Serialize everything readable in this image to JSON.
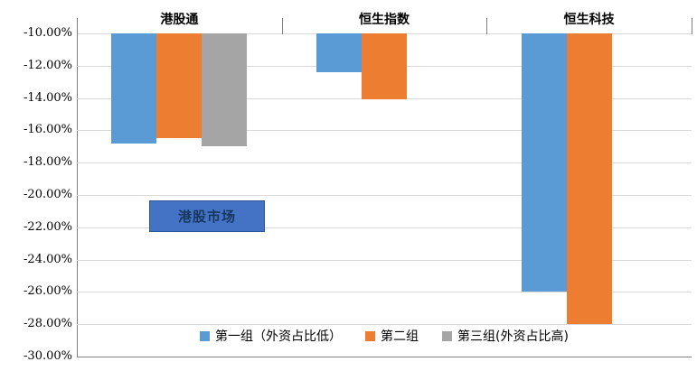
{
  "chart_data": {
    "type": "bar",
    "categories": [
      "港股通",
      "恒生指数",
      "恒生科技"
    ],
    "series": [
      {
        "name": "第一组（外资占比低）",
        "color": "#5B9BD5",
        "values": [
          -16.8,
          -12.4,
          -26.0
        ]
      },
      {
        "name": "第二组",
        "color": "#ED7D31",
        "values": [
          -16.5,
          -14.1,
          -28.0
        ]
      },
      {
        "name": "第三组(外资占比高)",
        "color": "#A5A5A5",
        "values": [
          -17.0,
          null,
          null
        ]
      }
    ],
    "ylim": [
      -30,
      -10
    ],
    "ytick_step": 2,
    "ytick_labels": [
      "-10.00%",
      "-12.00%",
      "-14.00%",
      "-16.00%",
      "-18.00%",
      "-20.00%",
      "-22.00%",
      "-24.00%",
      "-26.00%",
      "-28.00%",
      "-30.00%"
    ],
    "grid": true,
    "legend_position": "bottom-inside",
    "annotation": {
      "text": "港股市场",
      "bg": "#4472C4",
      "text_color": "#17375E"
    }
  }
}
